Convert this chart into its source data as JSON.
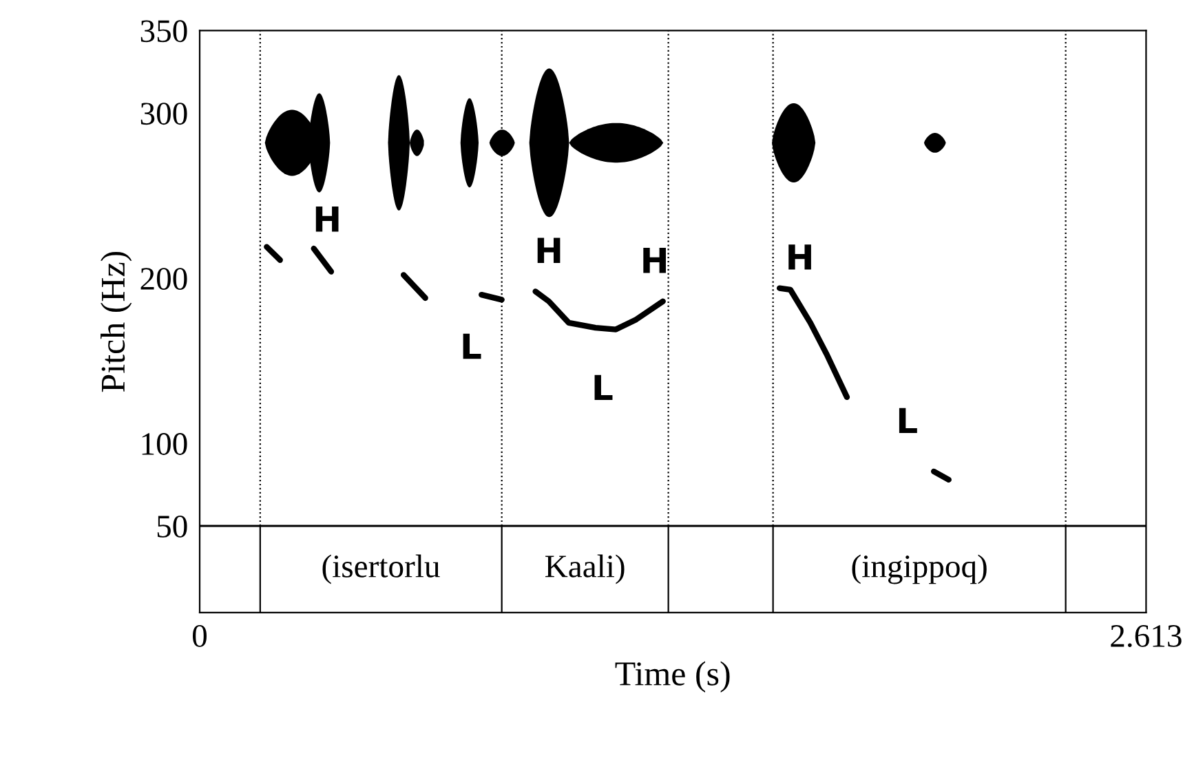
{
  "chart_data": {
    "type": "line",
    "xlabel": "Time (s)",
    "ylabel": "Pitch (Hz)",
    "xlim": [
      0,
      2.613
    ],
    "xticks": [
      0,
      2.613
    ],
    "ylim": [
      -2.5,
      350
    ],
    "yticks": [
      50,
      100,
      200,
      300,
      350
    ],
    "series": [
      {
        "color": "#000000",
        "x": [
          0.185,
          0.222,
          null,
          0.315,
          0.363,
          null,
          0.563,
          0.623,
          null,
          0.778,
          0.834,
          null,
          0.927,
          0.964,
          1.019,
          1.093,
          1.149,
          1.205,
          1.279,
          null,
          1.601,
          1.631,
          1.686,
          1.731,
          1.787,
          null,
          2.027,
          2.068
        ],
        "values": [
          219,
          211,
          null,
          218,
          204,
          null,
          202,
          188,
          null,
          190,
          187,
          null,
          192,
          186,
          173,
          170,
          169,
          175,
          186,
          null,
          194,
          193,
          173,
          154,
          128,
          null,
          83,
          78
        ]
      }
    ],
    "ref_lines": [
      {
        "axis": "y",
        "value": 50,
        "line_style": "solid"
      },
      {
        "axis": "x",
        "value": 0.167,
        "line_style": "dotted"
      },
      {
        "axis": "x",
        "value": 0.834,
        "line_style": "dotted"
      },
      {
        "axis": "x",
        "value": 1.294,
        "line_style": "dotted"
      },
      {
        "axis": "x",
        "value": 1.583,
        "line_style": "dotted"
      },
      {
        "axis": "x",
        "value": 2.391,
        "line_style": "dotted"
      }
    ],
    "annotations": [
      "H",
      "L",
      "H",
      "L",
      "H",
      "H",
      "L",
      "(isertorlu",
      "Kaali)",
      "(ingippoq)"
    ],
    "grid": false,
    "legend": false
  }
}
